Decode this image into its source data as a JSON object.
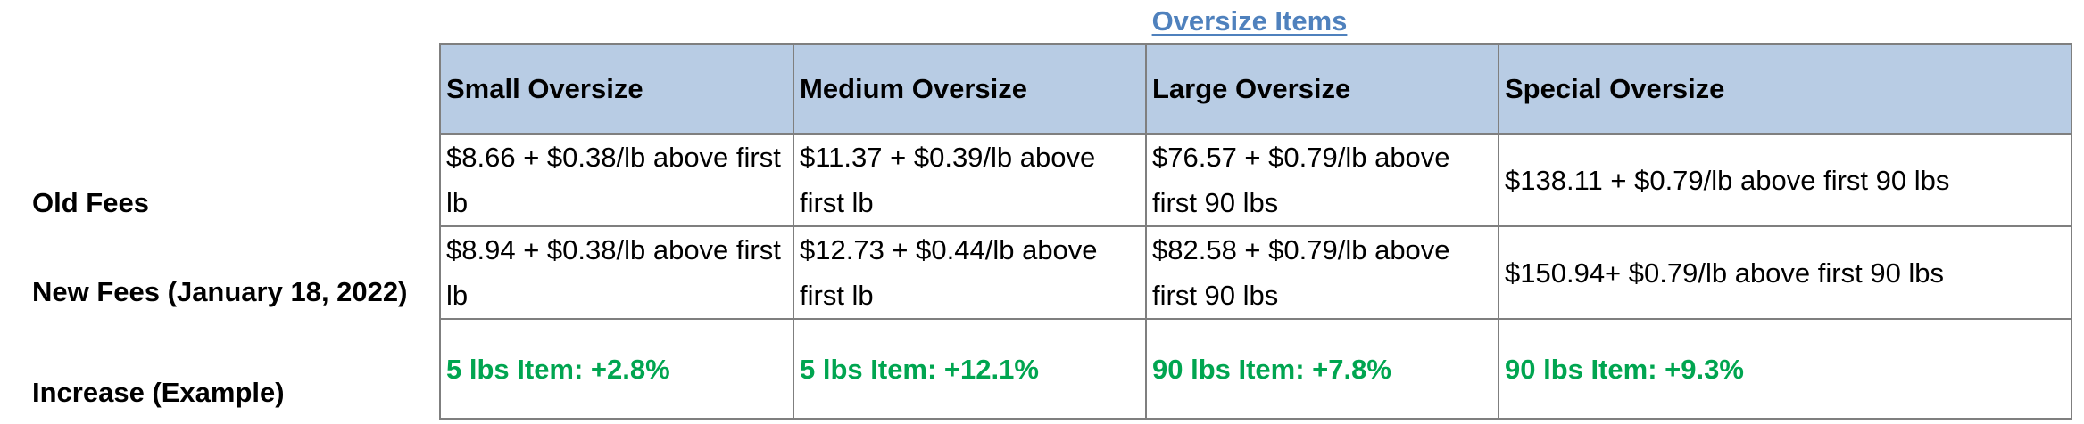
{
  "title": "Oversize Items",
  "row_labels": {
    "old": "Old Fees",
    "new": "New Fees (January 18, 2022)",
    "increase": "Increase (Example)"
  },
  "columns": [
    "Small Oversize",
    "Medium Oversize",
    "Large Oversize",
    "Special Oversize"
  ],
  "old_fees": [
    "$8.66 + $0.38/lb above first lb",
    "$11.37 + $0.39/lb above first lb",
    "$76.57 + $0.79/lb above first 90 lbs",
    "$138.11 + $0.79/lb above first 90 lbs"
  ],
  "new_fees": [
    "$8.94 + $0.38/lb above first lb",
    "$12.73 + $0.44/lb above first lb",
    "$82.58 + $0.79/lb above first 90 lbs",
    "$150.94+ $0.79/lb above first 90 lbs"
  ],
  "increase": [
    "5 lbs Item: +2.8%",
    "5 lbs Item: +12.1%",
    "90 lbs Item: +7.8%",
    "90 lbs Item: +9.3%"
  ],
  "colors": {
    "title": "#4f81bd",
    "header_background": "#b8cce4",
    "increase_text": "#00a550",
    "border": "#7f7f7f"
  }
}
